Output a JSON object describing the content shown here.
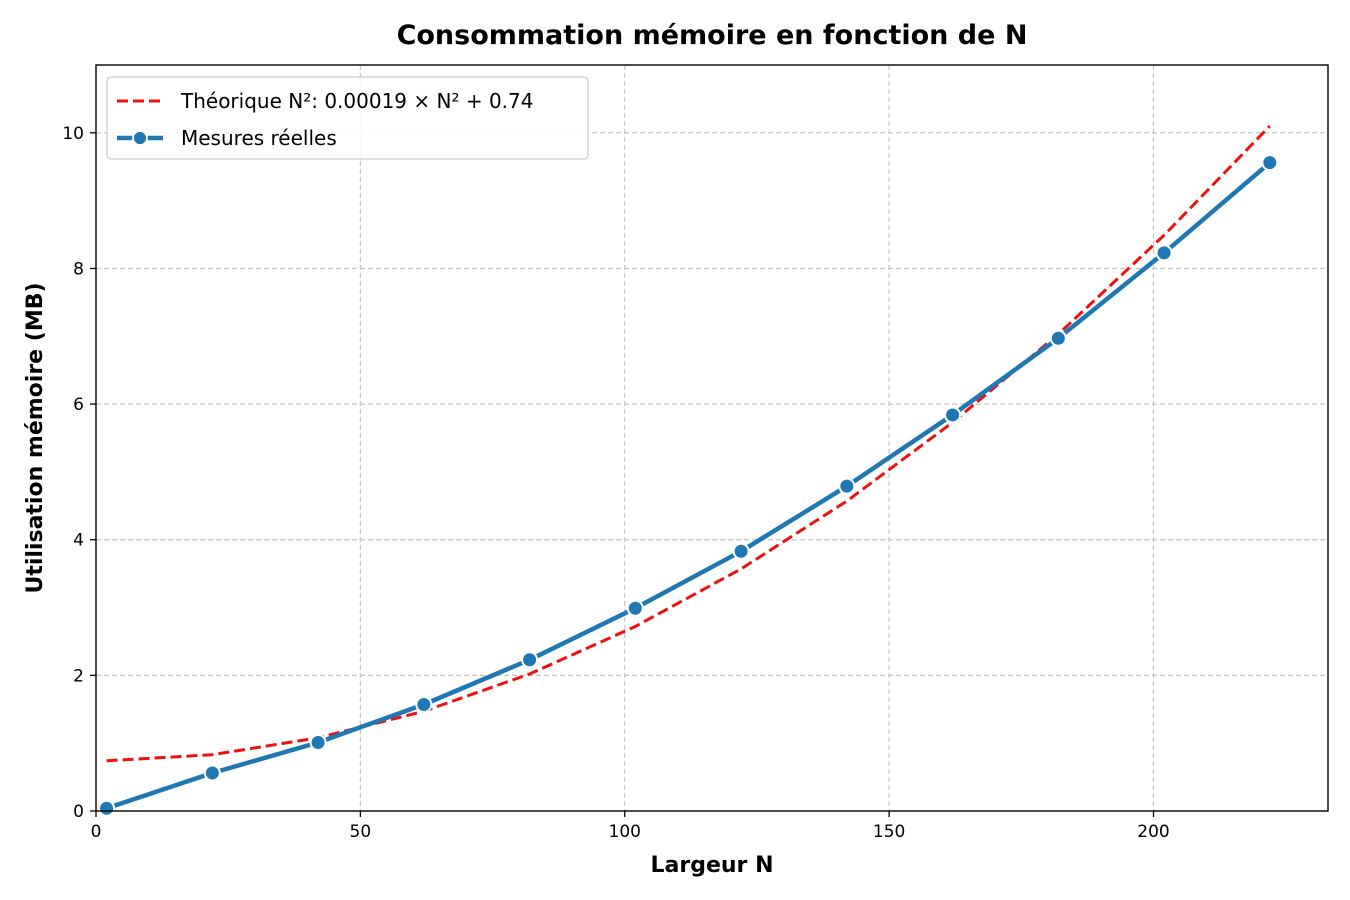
{
  "chart_data": {
    "type": "line",
    "title": "Consommation mémoire en fonction de N",
    "xlabel": "Largeur N",
    "ylabel": "Utilisation mémoire (MB)",
    "xlim": [
      0,
      233
    ],
    "ylim": [
      0,
      11
    ],
    "xticks": [
      0,
      50,
      100,
      150,
      200
    ],
    "yticks": [
      0,
      2,
      4,
      6,
      8,
      10
    ],
    "grid": true,
    "legend_position": "top-left",
    "series": [
      {
        "name": "Théorique N²: 0.00019 × N² + 0.74",
        "style": "dashed",
        "color": "#ee1111",
        "x": [
          2,
          22,
          42,
          62,
          82,
          102,
          122,
          142,
          162,
          182,
          202,
          222
        ],
        "y": [
          0.74,
          0.83,
          1.08,
          1.47,
          2.02,
          2.72,
          3.57,
          4.57,
          5.73,
          7.03,
          8.49,
          10.1
        ]
      },
      {
        "name": "Mesures réelles",
        "style": "solid-markers",
        "color": "#1f77b4",
        "x": [
          2,
          22,
          42,
          62,
          82,
          102,
          122,
          142,
          162,
          182,
          202,
          222
        ],
        "y": [
          0.04,
          0.56,
          1.01,
          1.57,
          2.23,
          2.99,
          3.83,
          4.79,
          5.84,
          6.97,
          8.23,
          9.56
        ]
      }
    ]
  }
}
